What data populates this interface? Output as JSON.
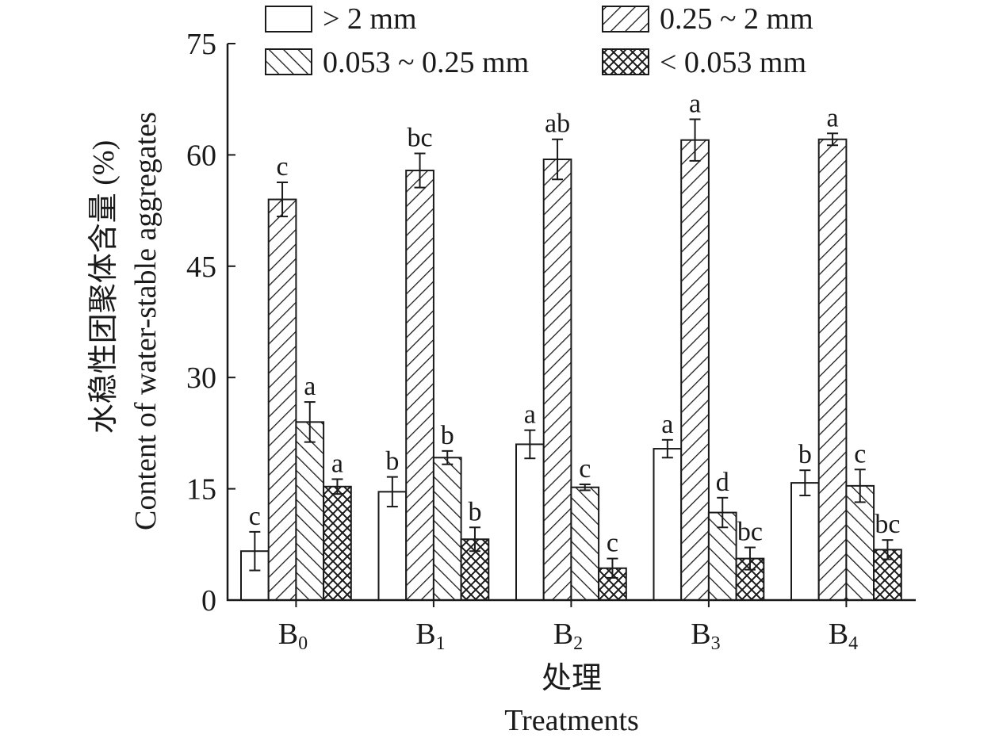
{
  "chart_data": {
    "type": "bar",
    "ylabel_zh": "水稳性团聚体含量 (%)",
    "ylabel_en": "Content of water-stable aggregates",
    "xlabel_zh": "处理",
    "xlabel_en": "Treatments",
    "categories": [
      {
        "base": "B",
        "sub": "0"
      },
      {
        "base": "B",
        "sub": "1"
      },
      {
        "base": "B",
        "sub": "2"
      },
      {
        "base": "B",
        "sub": "3"
      },
      {
        "base": "B",
        "sub": "4"
      }
    ],
    "ylim": [
      0,
      75
    ],
    "yticks": [
      0,
      15,
      30,
      45,
      60,
      75
    ],
    "legend_placement": "top",
    "series": [
      {
        "name": "> 2 mm",
        "pattern": "blank",
        "values": [
          6.6,
          14.6,
          21.0,
          20.4,
          15.8
        ],
        "errors": [
          2.6,
          2.0,
          1.9,
          1.2,
          1.7
        ],
        "letters": [
          "c",
          "b",
          "a",
          "a",
          "b"
        ]
      },
      {
        "name": "0.25 ~ 2 mm",
        "pattern": "forward-hatch",
        "values": [
          54.0,
          57.9,
          59.4,
          62.0,
          62.1
        ],
        "errors": [
          2.3,
          2.3,
          2.7,
          2.8,
          0.8
        ],
        "letters": [
          "c",
          "bc",
          "ab",
          "a",
          "a"
        ]
      },
      {
        "name": "0.053 ~ 0.25 mm",
        "pattern": "back-hatch",
        "values": [
          24.0,
          19.2,
          15.2,
          11.8,
          15.4
        ],
        "errors": [
          2.7,
          0.9,
          0.4,
          2.0,
          2.2
        ],
        "letters": [
          "a",
          "b",
          "c",
          "d",
          "c"
        ]
      },
      {
        "name": "< 0.053 mm",
        "pattern": "cross-hatch",
        "values": [
          15.3,
          8.2,
          4.3,
          5.6,
          6.8
        ],
        "errors": [
          1.0,
          1.6,
          1.3,
          1.5,
          1.3
        ],
        "letters": [
          "a",
          "b",
          "c",
          "bc",
          "bc"
        ]
      }
    ]
  }
}
